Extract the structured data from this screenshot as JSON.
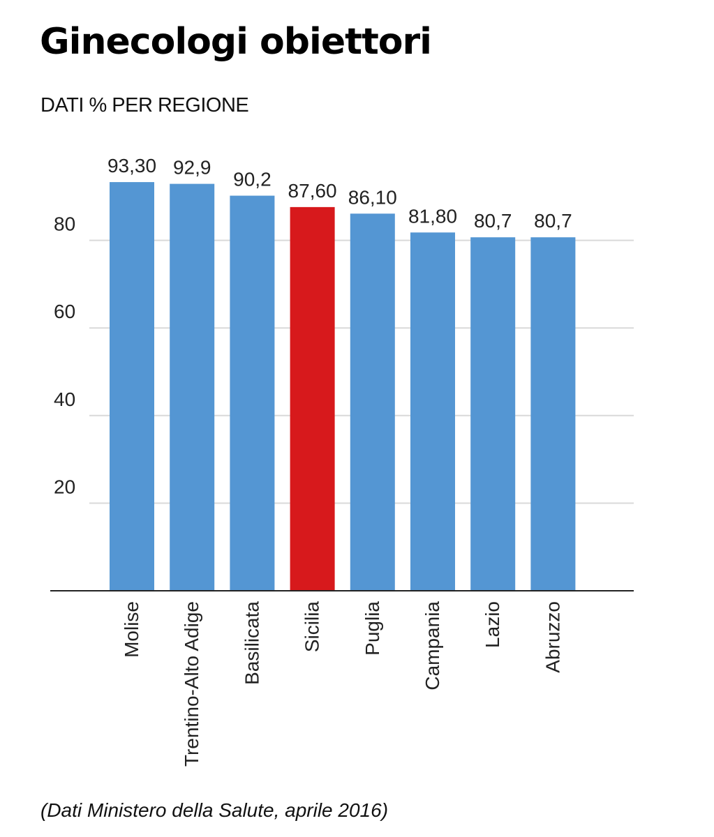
{
  "title": "Ginecologi obiettori",
  "subtitle": "DATI % PER REGIONE",
  "source": "(Dati Ministero della Salute, aprile 2016)",
  "colors": {
    "bar": "#5496d3",
    "highlight": "#d7191c",
    "grid": "#d9d9d9",
    "axis": "#222222"
  },
  "chart_data": {
    "type": "bar",
    "title": "Ginecologi obiettori",
    "subtitle": "DATI % PER REGIONE",
    "categories": [
      "Molise",
      "Trentino-Alto Adige",
      "Basilicata",
      "Sicilia",
      "Puglia",
      "Campania",
      "Lazio",
      "Abruzzo"
    ],
    "values": [
      93.3,
      92.9,
      90.2,
      87.6,
      86.1,
      81.8,
      80.7,
      80.7
    ],
    "value_labels": [
      "93,30",
      "92,9",
      "90,2",
      "87,60",
      "86,10",
      "81,80",
      "80,7",
      "80,7"
    ],
    "highlight": "Sicilia",
    "yticks": [
      20,
      40,
      60,
      80
    ],
    "ylim": [
      0,
      100
    ],
    "grid": true,
    "xlabel": "",
    "ylabel": ""
  }
}
